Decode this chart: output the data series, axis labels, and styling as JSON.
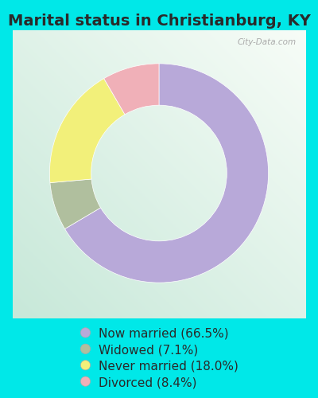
{
  "title": "Marital status in Christianburg, KY",
  "slices": [
    66.5,
    7.1,
    18.0,
    8.4
  ],
  "labels": [
    "Now married (66.5%)",
    "Widowed (7.1%)",
    "Never married (18.0%)",
    "Divorced (8.4%)"
  ],
  "colors": [
    "#b8a9d9",
    "#b0bf9e",
    "#f2f07a",
    "#f0b0b8"
  ],
  "start_angle": 90,
  "bg_cyan": "#00e8e8",
  "chart_bg_color": "#e8f5ee",
  "title_fontsize": 14,
  "legend_fontsize": 11,
  "watermark": "City-Data.com",
  "donut_width": 0.38
}
